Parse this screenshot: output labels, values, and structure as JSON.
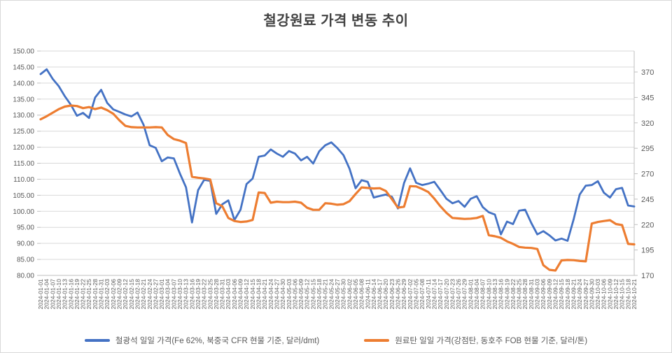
{
  "title": "철강원료 가격 변동 추이",
  "chart_data": {
    "type": "line",
    "title": "철강원료 가격 변동 추이",
    "grid": true,
    "legend_position": "bottom",
    "x_axis_note": "daily dates, tick labels every 3 days, rotated 90deg",
    "x": [
      "2024-01-01",
      "2024-01-04",
      "2024-01-07",
      "2024-01-10",
      "2024-01-13",
      "2024-01-16",
      "2024-01-19",
      "2024-01-22",
      "2024-01-25",
      "2024-01-28",
      "2024-01-31",
      "2024-02-03",
      "2024-02-06",
      "2024-02-09",
      "2024-02-12",
      "2024-02-15",
      "2024-02-18",
      "2024-02-21",
      "2024-02-24",
      "2024-02-27",
      "2024-03-01",
      "2024-03-04",
      "2024-03-07",
      "2024-03-10",
      "2024-03-13",
      "2024-03-16",
      "2024-03-19",
      "2024-03-22",
      "2024-03-25",
      "2024-03-28",
      "2024-03-31",
      "2024-04-03",
      "2024-04-06",
      "2024-04-09",
      "2024-04-12",
      "2024-04-15",
      "2024-04-18",
      "2024-04-21",
      "2024-04-24",
      "2024-04-27",
      "2024-04-30",
      "2024-05-03",
      "2024-05-06",
      "2024-05-09",
      "2024-05-12",
      "2024-05-15",
      "2024-05-18",
      "2024-05-21",
      "2024-05-24",
      "2024-05-27",
      "2024-05-30",
      "2024-06-02",
      "2024-06-05",
      "2024-06-08",
      "2024-06-11",
      "2024-06-14",
      "2024-06-17",
      "2024-06-20",
      "2024-06-23",
      "2024-06-26",
      "2024-06-29",
      "2024-07-02",
      "2024-07-05",
      "2024-07-08",
      "2024-07-11",
      "2024-07-14",
      "2024-07-17",
      "2024-07-20",
      "2024-07-23",
      "2024-07-26",
      "2024-07-29",
      "2024-08-01",
      "2024-08-04",
      "2024-08-07",
      "2024-08-10",
      "2024-08-13",
      "2024-08-16",
      "2024-08-19",
      "2024-08-22",
      "2024-08-25",
      "2024-08-28",
      "2024-08-31",
      "2024-09-03",
      "2024-09-06",
      "2024-09-09",
      "2024-09-12",
      "2024-09-15",
      "2024-09-18",
      "2024-09-21",
      "2024-09-24",
      "2024-09-27",
      "2024-09-30",
      "2024-10-03",
      "2024-10-06",
      "2024-10-09",
      "2024-10-12",
      "2024-10-15",
      "2024-10-18",
      "2024-10-21"
    ],
    "y_left": {
      "min": 80,
      "max": 150,
      "step": 5,
      "ticks": [
        "150.00",
        "145.00",
        "140.00",
        "135.00",
        "130.00",
        "125.00",
        "120.00",
        "115.00",
        "110.00",
        "105.00",
        "100.00",
        "95.00",
        "90.00",
        "85.00",
        "80.00"
      ]
    },
    "y_right": {
      "min": 170,
      "max": 370,
      "step": 25,
      "ticks": [
        "370",
        "345",
        "320",
        "295",
        "270",
        "245",
        "220",
        "195",
        "170"
      ]
    },
    "series": [
      {
        "name": "철광석 일일 가격(Fe 62%, 북중국 CFR 현물 기준, 달러/dmt)",
        "axis": "left",
        "color": "#4472C4",
        "width": 2.8,
        "values": [
          142.8,
          144.3,
          141.3,
          139.0,
          135.9,
          133.2,
          129.8,
          130.7,
          129.1,
          135.5,
          137.9,
          133.8,
          131.8,
          131.0,
          130.2,
          129.6,
          130.8,
          127.0,
          120.6,
          119.8,
          115.6,
          116.8,
          116.5,
          111.8,
          107.5,
          96.5,
          106.6,
          109.8,
          109.5,
          99.2,
          102.2,
          103.4,
          97.3,
          100.5,
          108.5,
          110.2,
          117.0,
          117.4,
          119.3,
          118.0,
          117.0,
          118.8,
          118.0,
          115.9,
          117.0,
          114.9,
          118.7,
          120.6,
          121.5,
          119.7,
          117.5,
          113.3,
          107.2,
          109.7,
          109.2,
          104.3,
          104.8,
          105.2,
          104.5,
          100.9,
          108.8,
          113.4,
          108.9,
          108.2,
          108.6,
          109.2,
          106.6,
          103.9,
          102.5,
          103.2,
          101.4,
          103.9,
          104.7,
          101.3,
          99.7,
          99.0,
          92.8,
          96.8,
          96.0,
          100.2,
          100.5,
          96.4,
          92.8,
          93.8,
          92.5,
          90.9,
          91.5,
          90.8,
          97.5,
          105.2,
          108.0,
          108.2,
          109.4,
          105.8,
          104.3,
          106.9,
          107.3,
          101.8,
          101.5
        ]
      },
      {
        "name": "원료탄 일일 가격(강점탄, 동호주 FOB 현물 기준, 달러/톤)",
        "axis": "right",
        "color": "#ED7D31",
        "width": 3.2,
        "values": [
          323.5,
          326.5,
          330.0,
          333.5,
          336.0,
          337.0,
          336.5,
          334.5,
          335.5,
          333.5,
          335.0,
          332.5,
          329.0,
          322.5,
          317.0,
          315.8,
          315.5,
          315.5,
          315.5,
          315.8,
          315.5,
          308.0,
          304.0,
          302.5,
          300.2,
          267.0,
          266.0,
          265.3,
          264.3,
          241.0,
          238.0,
          226.5,
          223.5,
          222.5,
          223.0,
          224.5,
          251.5,
          251.0,
          241.5,
          242.5,
          242.0,
          242.0,
          242.5,
          241.5,
          236.5,
          234.5,
          234.5,
          241.0,
          240.5,
          239.5,
          240.0,
          243.0,
          250.0,
          256.5,
          256.0,
          255.5,
          255.8,
          253.0,
          245.0,
          236.7,
          237.5,
          257.8,
          257.5,
          255.0,
          252.0,
          245.5,
          238.0,
          231.5,
          226.5,
          226.0,
          225.5,
          225.8,
          226.5,
          228.5,
          209.5,
          208.5,
          207.0,
          203.5,
          201.0,
          198.0,
          197.3,
          197.0,
          196.0,
          180.0,
          175.5,
          174.8,
          184.8,
          185.2,
          185.0,
          184.2,
          183.8,
          221.0,
          222.5,
          223.5,
          224.3,
          220.5,
          219.5,
          201.0,
          200.5
        ]
      }
    ],
    "colors": {
      "iron_ore_line": "#4472C4",
      "coking_coal_line": "#ED7D31",
      "gridline": "#D9D9D9",
      "axis_line": "#BFBFBF",
      "tick_text": "#595959",
      "title_text": "#424242"
    }
  }
}
